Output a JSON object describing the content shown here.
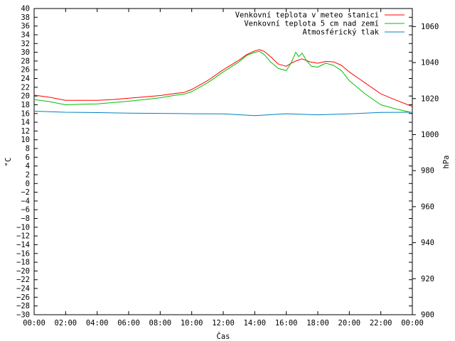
{
  "chart_data": {
    "type": "line",
    "title": "",
    "xlabel": "Čas",
    "ylabel": "°C",
    "y2label": "hPa",
    "grid": false,
    "legend_position": "top-right",
    "x_ticks": [
      "00:00",
      "02:00",
      "04:00",
      "06:00",
      "08:00",
      "10:00",
      "12:00",
      "14:00",
      "16:00",
      "18:00",
      "20:00",
      "22:00",
      "00:00"
    ],
    "ylim": [
      -30,
      40
    ],
    "y_ticks": [
      -30,
      -28,
      -26,
      -24,
      -22,
      -20,
      -18,
      -16,
      -14,
      -12,
      -10,
      -8,
      -6,
      -4,
      -2,
      0,
      2,
      4,
      6,
      8,
      10,
      12,
      14,
      16,
      18,
      20,
      22,
      24,
      26,
      28,
      30,
      32,
      34,
      36,
      38,
      40
    ],
    "y2lim": [
      900,
      1070
    ],
    "y2_ticks": [
      900,
      920,
      940,
      960,
      980,
      1000,
      1020,
      1040,
      1060
    ],
    "series": [
      {
        "name": "Venkovní teplota v meteo stanici",
        "color": "#ff0000",
        "axis": "left",
        "x": [
          0,
          1,
          2,
          3,
          4,
          5,
          6,
          7,
          8,
          9,
          9.5,
          10,
          11,
          12,
          13,
          13.5,
          14,
          14.3,
          14.6,
          15,
          15.5,
          16,
          16.3,
          16.6,
          17,
          17.5,
          18,
          18.5,
          19,
          19.5,
          20,
          21,
          22,
          23,
          24
        ],
        "y": [
          20.2,
          19.7,
          19.0,
          19.0,
          19.0,
          19.2,
          19.5,
          19.8,
          20.1,
          20.6,
          20.8,
          21.5,
          23.5,
          26.0,
          28.2,
          29.5,
          30.3,
          30.6,
          30.2,
          29.0,
          27.3,
          26.8,
          27.5,
          28.0,
          28.5,
          27.8,
          27.5,
          27.9,
          27.8,
          27.0,
          25.5,
          23.0,
          20.5,
          19.0,
          17.6
        ]
      },
      {
        "name": "Venkovní teplota 5 cm nad zemí",
        "color": "#00c000",
        "axis": "left",
        "x": [
          0,
          1,
          2,
          3,
          4,
          5,
          6,
          7,
          8,
          9,
          9.5,
          10,
          11,
          12,
          13,
          13.5,
          14,
          14.3,
          14.6,
          15,
          15.5,
          16,
          16.3,
          16.6,
          16.8,
          17,
          17.3,
          17.6,
          18,
          18.5,
          19,
          19.5,
          20,
          21,
          22,
          23,
          24
        ],
        "y": [
          19.2,
          18.7,
          18.0,
          18.1,
          18.2,
          18.5,
          18.8,
          19.2,
          19.6,
          20.2,
          20.4,
          21.0,
          23.0,
          25.5,
          27.8,
          29.3,
          30.0,
          30.2,
          29.5,
          27.8,
          26.3,
          25.8,
          27.5,
          30.0,
          29.0,
          29.8,
          28.0,
          26.8,
          26.6,
          27.5,
          27.0,
          25.8,
          23.5,
          20.5,
          18.0,
          17.0,
          16.2
        ]
      },
      {
        "name": "Atmosférický tlak",
        "color": "#0080c0",
        "axis": "right",
        "x": [
          0,
          2,
          4,
          6,
          8,
          10,
          12,
          14,
          16,
          18,
          20,
          22,
          24
        ],
        "y": [
          1013.0,
          1012.4,
          1012.2,
          1011.9,
          1011.8,
          1011.6,
          1011.5,
          1010.5,
          1011.6,
          1011.0,
          1011.5,
          1012.3,
          1012.4
        ]
      }
    ]
  }
}
